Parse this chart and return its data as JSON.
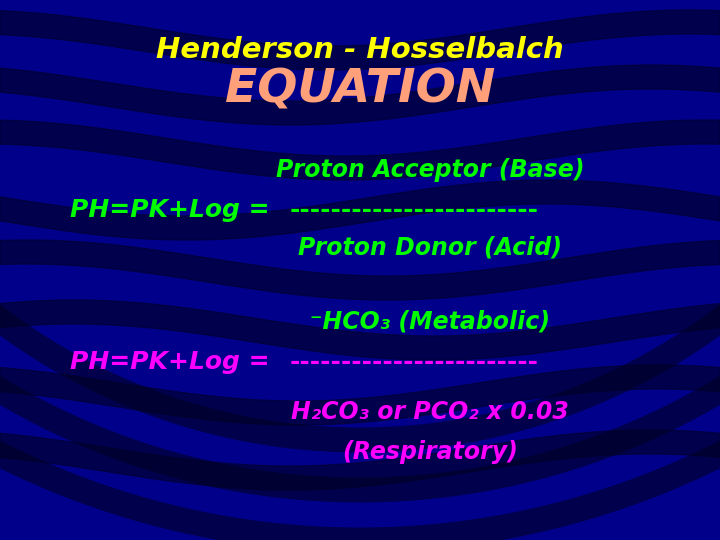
{
  "bg_color": "#00008B",
  "title_line1": "Henderson - Hosselbalch",
  "title_line2": "EQUATION",
  "title1_color": "#FFFF00",
  "title2_color": "#FFA07A",
  "equation_color": "#00FF00",
  "metabolic_color": "#00FF00",
  "bottom_eq_color": "#FF00FF",
  "bottom_text_color": "#FF00FF",
  "line1_numerator": "Proton Acceptor (Base)",
  "line1_eq": "PH=PK+Log = ",
  "line1_dashes": "------------------------",
  "line1_denominator": "Proton Donor (Acid)",
  "line2_numerator": "⁻HCO₃ (Metabolic)",
  "line2_eq": "PH=PK+Log = ",
  "line2_dashes": "------------------------",
  "line2_denom1": "H₂CO₃ or PCO₂ x 0.03",
  "line2_denom2": "(Respiratory)"
}
